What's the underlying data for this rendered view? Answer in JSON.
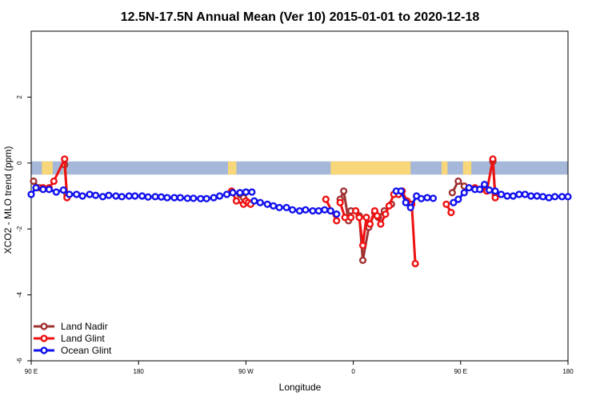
{
  "chart_data": {
    "type": "line",
    "title": "12.5N-17.5N Annual Mean (Ver 10)   2015-01-01 to 2020-12-18",
    "xlabel": "Longitude",
    "ylabel": "XCO2 - MLO trend (ppm)",
    "xlim": [
      -180,
      270
    ],
    "ylim": [
      -6,
      4
    ],
    "x_ticks": [
      {
        "value": -180,
        "label": "90 E"
      },
      {
        "value": -90,
        "label": "180"
      },
      {
        "value": 0,
        "label": "90 W"
      },
      {
        "value": 90,
        "label": "0"
      },
      {
        "value": 180,
        "label": "90 E"
      },
      {
        "value": 270,
        "label": "180"
      }
    ],
    "y_ticks": [
      {
        "value": -6,
        "label": "-6"
      },
      {
        "value": -4,
        "label": "-4"
      },
      {
        "value": -2,
        "label": "-2"
      },
      {
        "value": 0,
        "label": "0"
      },
      {
        "value": 2,
        "label": "2"
      }
    ],
    "land_band": {
      "y_range": [
        -0.35,
        0.05
      ],
      "land_segments": [
        [
          -171,
          -162
        ],
        [
          -153,
          -151
        ],
        [
          -15,
          -8
        ],
        [
          71,
          138
        ],
        [
          164,
          169
        ],
        [
          182,
          189
        ]
      ],
      "ocean_color": "#a5b8d9",
      "land_color": "#f7d77a"
    },
    "legend_position": "bottom-left",
    "series": [
      {
        "name": "Land Nadir",
        "color": "#a03232",
        "segments": [
          [
            [
              -178,
              -0.55
            ],
            [
              -173,
              -0.75
            ]
          ],
          [
            [
              -152,
              -0.05
            ],
            [
              -150,
              -0.95
            ]
          ],
          [
            [
              -5,
              -0.95
            ],
            [
              -2,
              -1.05
            ]
          ],
          [
            [
              79,
              -1.1
            ],
            [
              82,
              -0.85
            ],
            [
              86,
              -1.75
            ]
          ],
          [
            [
              88,
              -1.45
            ],
            [
              92,
              -1.45
            ],
            [
              95,
              -1.6
            ],
            [
              98,
              -2.95
            ],
            [
              103,
              -1.95
            ],
            [
              108,
              -1.5
            ],
            [
              111,
              -1.65
            ],
            [
              116,
              -1.45
            ],
            [
              122,
              -1.25
            ]
          ],
          [
            [
              173,
              -0.9
            ],
            [
              178,
              -0.55
            ],
            [
              183,
              -0.7
            ]
          ],
          [
            [
              207,
              0.05
            ],
            [
              209,
              -0.95
            ]
          ]
        ]
      },
      {
        "name": "Land Glint",
        "color": "#ee1111",
        "segments": [
          [
            [
              -170,
              -0.75
            ],
            [
              -165,
              -0.75
            ],
            [
              -161,
              -0.55
            ],
            [
              -152,
              0.12
            ],
            [
              -150,
              -1.05
            ]
          ],
          [
            [
              -12,
              -0.85
            ],
            [
              -8,
              -1.15
            ],
            [
              -2,
              -1.25
            ],
            [
              0,
              -1.15
            ],
            [
              2,
              -1.2
            ],
            [
              4,
              -1.25
            ]
          ],
          [
            [
              67,
              -1.1
            ],
            [
              76,
              -1.75
            ]
          ],
          [
            [
              79,
              -1.2
            ],
            [
              83,
              -1.65
            ],
            [
              88,
              -1.65
            ]
          ],
          [
            [
              92,
              -1.45
            ],
            [
              95,
              -1.65
            ],
            [
              98,
              -2.5
            ],
            [
              101,
              -1.65
            ],
            [
              104,
              -1.85
            ],
            [
              108,
              -1.45
            ]
          ],
          [
            [
              110,
              -1.6
            ],
            [
              113,
              -1.85
            ],
            [
              117,
              -1.55
            ],
            [
              120,
              -1.3
            ],
            [
              124,
              -0.95
            ],
            [
              128,
              -0.95
            ]
          ],
          [
            [
              131,
              -0.85
            ],
            [
              135,
              -1.15
            ],
            [
              139,
              -1.25
            ],
            [
              142,
              -3.05
            ]
          ],
          [
            [
              168,
              -1.25
            ],
            [
              172,
              -1.5
            ]
          ],
          [
            [
              192,
              -0.75
            ],
            [
              197,
              -0.8
            ],
            [
              202,
              -0.85
            ],
            [
              207,
              0.12
            ],
            [
              209,
              -1.05
            ]
          ]
        ]
      },
      {
        "name": "Ocean Glint",
        "color": "#1111ee",
        "segments": [
          [
            [
              -180,
              -0.95
            ],
            [
              -176,
              -0.75
            ],
            [
              -170,
              -0.8
            ],
            [
              -165,
              -0.8
            ],
            [
              -159,
              -0.88
            ],
            [
              -153,
              -0.82
            ],
            [
              -148,
              -0.95
            ],
            [
              -142,
              -0.95
            ],
            [
              -137,
              -1.0
            ],
            [
              -131,
              -0.95
            ],
            [
              -126,
              -0.98
            ],
            [
              -120,
              -1.02
            ],
            [
              -115,
              -0.98
            ],
            [
              -109,
              -1.0
            ],
            [
              -104,
              -1.02
            ],
            [
              -98,
              -1.0
            ],
            [
              -93,
              -1.0
            ],
            [
              -87,
              -1.0
            ],
            [
              -82,
              -1.03
            ],
            [
              -76,
              -1.02
            ],
            [
              -71,
              -1.03
            ],
            [
              -66,
              -1.05
            ],
            [
              -60,
              -1.05
            ],
            [
              -55,
              -1.05
            ],
            [
              -49,
              -1.07
            ],
            [
              -44,
              -1.07
            ],
            [
              -38,
              -1.08
            ],
            [
              -33,
              -1.08
            ],
            [
              -27,
              -1.05
            ],
            [
              -22,
              -1.0
            ],
            [
              -16,
              -0.95
            ],
            [
              -11,
              -0.9
            ],
            [
              -5,
              -0.9
            ],
            [
              0,
              -0.88
            ],
            [
              5,
              -0.88
            ]
          ],
          [
            [
              7,
              -1.15
            ],
            [
              12,
              -1.2
            ],
            [
              18,
              -1.25
            ],
            [
              23,
              -1.3
            ],
            [
              28,
              -1.35
            ],
            [
              34,
              -1.35
            ],
            [
              39,
              -1.42
            ],
            [
              45,
              -1.45
            ],
            [
              50,
              -1.42
            ],
            [
              56,
              -1.45
            ],
            [
              61,
              -1.45
            ],
            [
              66,
              -1.42
            ],
            [
              71,
              -1.45
            ],
            [
              76,
              -1.55
            ]
          ],
          [
            [
              126,
              -0.85
            ],
            [
              130,
              -0.85
            ],
            [
              134,
              -1.2
            ],
            [
              138,
              -1.35
            ],
            [
              143,
              -1.0
            ],
            [
              147,
              -1.08
            ],
            [
              152,
              -1.05
            ],
            [
              157,
              -1.07
            ]
          ],
          [
            [
              174,
              -1.2
            ],
            [
              178,
              -1.1
            ],
            [
              183,
              -0.9
            ],
            [
              187,
              -0.75
            ],
            [
              192,
              -0.8
            ],
            [
              196,
              -0.8
            ],
            [
              200,
              -0.65
            ],
            [
              204,
              -0.82
            ],
            [
              209,
              -0.85
            ],
            [
              214,
              -0.95
            ],
            [
              219,
              -1.0
            ],
            [
              224,
              -1.0
            ],
            [
              229,
              -0.95
            ],
            [
              234,
              -0.95
            ],
            [
              239,
              -1.0
            ],
            [
              244,
              -1.0
            ],
            [
              249,
              -1.02
            ],
            [
              254,
              -1.05
            ],
            [
              259,
              -1.02
            ],
            [
              265,
              -1.02
            ],
            [
              270,
              -1.02
            ]
          ]
        ]
      }
    ]
  }
}
